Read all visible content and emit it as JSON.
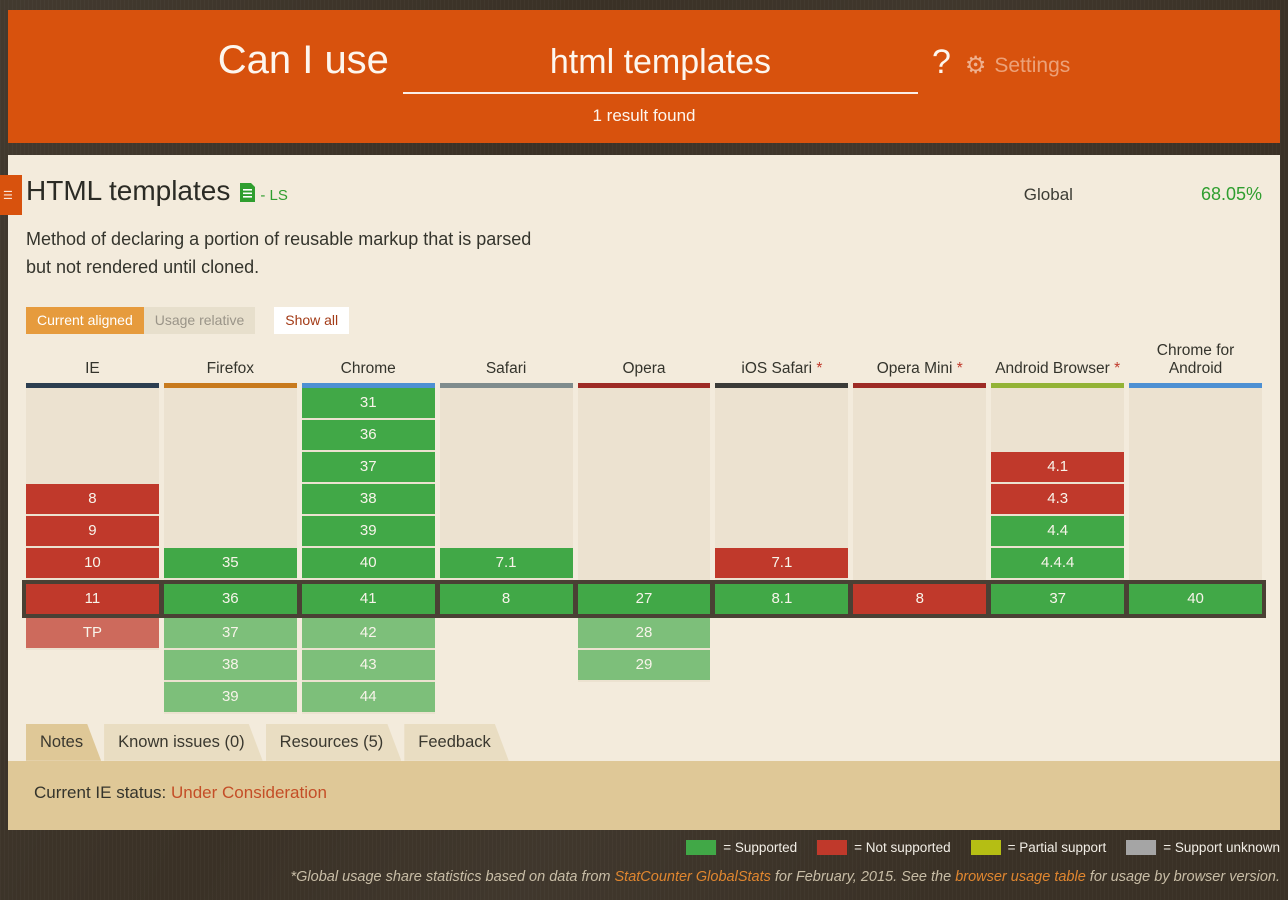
{
  "colors": {
    "supported": "#41a847",
    "supported_future": "#7dbf7a",
    "not_supported": "#c0392b",
    "not_supported_future": "#cd6a5c",
    "partial": "#b5be14",
    "unknown": "#a5a5a5",
    "accent_orange": "#d8520d"
  },
  "header": {
    "brand": "Can I use",
    "search_value": "html templates",
    "question_mark": "?",
    "gear_icon": "gear-icon",
    "settings_label": "Settings",
    "result_count": "1 result found"
  },
  "feature": {
    "title": "HTML templates",
    "spec_status": "- LS",
    "usage_label": "Global",
    "usage_value": "68.05%",
    "description_line1": "Method of declaring a portion of reusable markup that is parsed",
    "description_line2": "but not rendered until cloned."
  },
  "controls": {
    "current_aligned": "Current aligned",
    "usage_relative": "Usage relative",
    "show_all": "Show all"
  },
  "table": {
    "browsers": [
      {
        "name": "IE",
        "color": "#2c3e50",
        "asterisk": false
      },
      {
        "name": "Firefox",
        "color": "#c87a1d",
        "asterisk": false
      },
      {
        "name": "Chrome",
        "color": "#4d90d3",
        "asterisk": false
      },
      {
        "name": "Safari",
        "color": "#7f8c8d",
        "asterisk": false
      },
      {
        "name": "Opera",
        "color": "#9e2b25",
        "asterisk": false
      },
      {
        "name": "iOS Safari",
        "color": "#3b3b38",
        "asterisk": true
      },
      {
        "name": "Opera Mini",
        "color": "#9e2b25",
        "asterisk": true
      },
      {
        "name": "Android Browser",
        "color": "#93b336",
        "asterisk": true
      },
      {
        "name": "Chrome for Android",
        "color": "#4d90d3",
        "asterisk": false
      }
    ],
    "track_rows": [
      8,
      10,
      10,
      7,
      9,
      7,
      7,
      7,
      7
    ],
    "rows": [
      {
        "type": "past",
        "cells": [
          null,
          null,
          {
            "v": "31",
            "s": "y"
          },
          null,
          null,
          null,
          null,
          null,
          null
        ]
      },
      {
        "type": "past",
        "cells": [
          null,
          null,
          {
            "v": "36",
            "s": "y"
          },
          null,
          null,
          null,
          null,
          null,
          null
        ]
      },
      {
        "type": "past",
        "cells": [
          null,
          null,
          {
            "v": "37",
            "s": "y"
          },
          null,
          null,
          null,
          null,
          {
            "v": "4.1",
            "s": "n"
          },
          null
        ]
      },
      {
        "type": "past",
        "cells": [
          {
            "v": "8",
            "s": "n"
          },
          null,
          {
            "v": "38",
            "s": "y"
          },
          null,
          null,
          null,
          null,
          {
            "v": "4.3",
            "s": "n"
          },
          null
        ]
      },
      {
        "type": "past",
        "cells": [
          {
            "v": "9",
            "s": "n"
          },
          null,
          {
            "v": "39",
            "s": "y"
          },
          null,
          null,
          null,
          null,
          {
            "v": "4.4",
            "s": "y"
          },
          null
        ]
      },
      {
        "type": "past",
        "cells": [
          {
            "v": "10",
            "s": "n"
          },
          {
            "v": "35",
            "s": "y"
          },
          {
            "v": "40",
            "s": "y"
          },
          {
            "v": "7.1",
            "s": "y"
          },
          null,
          {
            "v": "7.1",
            "s": "n"
          },
          null,
          {
            "v": "4.4.4",
            "s": "y"
          },
          null
        ]
      },
      {
        "type": "current",
        "cells": [
          {
            "v": "11",
            "s": "n"
          },
          {
            "v": "36",
            "s": "y"
          },
          {
            "v": "41",
            "s": "y"
          },
          {
            "v": "8",
            "s": "y"
          },
          {
            "v": "27",
            "s": "y"
          },
          {
            "v": "8.1",
            "s": "y"
          },
          {
            "v": "8",
            "s": "n"
          },
          {
            "v": "37",
            "s": "y"
          },
          {
            "v": "40",
            "s": "y"
          }
        ]
      },
      {
        "type": "future",
        "cells": [
          {
            "v": "TP",
            "s": "nf"
          },
          {
            "v": "37",
            "s": "yf"
          },
          {
            "v": "42",
            "s": "yf"
          },
          null,
          {
            "v": "28",
            "s": "yf"
          },
          null,
          null,
          null,
          null
        ]
      },
      {
        "type": "future",
        "cells": [
          null,
          {
            "v": "38",
            "s": "yf"
          },
          {
            "v": "43",
            "s": "yf"
          },
          null,
          {
            "v": "29",
            "s": "yf"
          },
          null,
          null,
          null,
          null
        ]
      },
      {
        "type": "future",
        "cells": [
          null,
          {
            "v": "39",
            "s": "yf"
          },
          {
            "v": "44",
            "s": "yf"
          },
          null,
          null,
          null,
          null,
          null,
          null
        ]
      }
    ]
  },
  "tabs": [
    {
      "label": "Notes",
      "active": true
    },
    {
      "label": "Known issues (0)",
      "active": false
    },
    {
      "label": "Resources (5)",
      "active": false
    },
    {
      "label": "Feedback",
      "active": false
    }
  ],
  "notes": {
    "label": "Current IE status: ",
    "link": "Under Consideration"
  },
  "legend": [
    {
      "label": "= Supported",
      "color_key": "supported"
    },
    {
      "label": "= Not supported",
      "color_key": "not_supported"
    },
    {
      "label": "= Partial support",
      "color_key": "partial"
    },
    {
      "label": "= Support unknown",
      "color_key": "unknown"
    }
  ],
  "footer": {
    "part1": "*Global usage share statistics based on data from ",
    "link1": "StatCounter GlobalStats",
    "part2": " for February, 2015. See the ",
    "link2": "browser usage table",
    "part3": " for usage by browser version."
  }
}
